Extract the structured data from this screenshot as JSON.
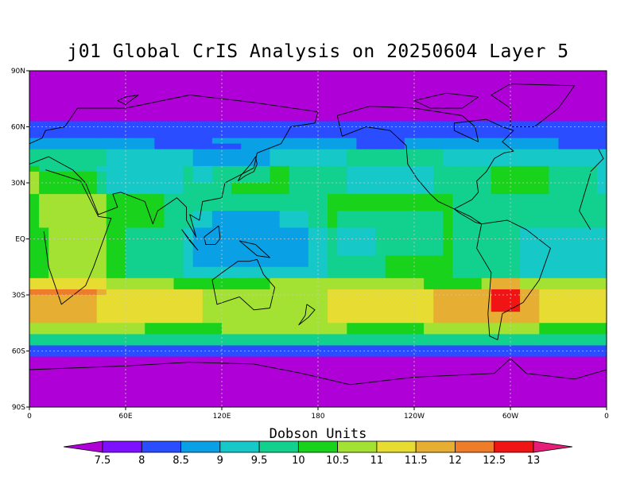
{
  "title": "j01 Global CrIS Analysis on 20250604 Layer 5",
  "colorbar": {
    "title": "Dobson Units",
    "ticks": [
      "7.5",
      "8",
      "8.5",
      "9",
      "9.5",
      "10",
      "10.5",
      "11",
      "11.5",
      "12",
      "12.5",
      "13"
    ],
    "colors": [
      "#b000d8",
      "#7d10ff",
      "#2a4dff",
      "#0aa0e6",
      "#16c8c8",
      "#12d08e",
      "#18d21c",
      "#a3e232",
      "#e6dc32",
      "#e6ae32",
      "#ee7c28",
      "#f01414",
      "#e61e78"
    ]
  },
  "axes": {
    "lat_labels": [
      "90N",
      "60N",
      "30N",
      "EQ",
      "30S",
      "60S",
      "90S"
    ],
    "lon_labels": [
      "0",
      "60E",
      "120E",
      "180",
      "120W",
      "60W",
      "0"
    ]
  },
  "chart_data": {
    "type": "heatmap",
    "title": "j01 Global CrIS Analysis on 20250604 Layer 5",
    "units": "Dobson Units",
    "projection": "cylindrical equidistant",
    "xlim": [
      0,
      360
    ],
    "ylim": [
      -90,
      90
    ],
    "grid": true,
    "color_levels": [
      7.5,
      8,
      8.5,
      9,
      9.5,
      10,
      10.5,
      11,
      11.5,
      12,
      12.5,
      13
    ],
    "zonal_bands": [
      {
        "lat_range": [
          60,
          90
        ],
        "value_range": [
          7,
          7.5
        ]
      },
      {
        "lat_range": [
          47,
          60
        ],
        "value_range": [
          8,
          9
        ]
      },
      {
        "lat_range": [
          30,
          47
        ],
        "value_range": [
          9,
          10
        ]
      },
      {
        "lat_range": [
          0,
          30
        ],
        "value_range": [
          9,
          10.5
        ]
      },
      {
        "lat_range": [
          -25,
          0
        ],
        "value_range": [
          9,
          10.5
        ]
      },
      {
        "lat_range": [
          -50,
          -25
        ],
        "value_range": [
          10.5,
          12
        ]
      },
      {
        "lat_range": [
          -60,
          -50
        ],
        "value_range": [
          8,
          10
        ]
      },
      {
        "lat_range": [
          -90,
          -60
        ],
        "value_range": [
          7,
          7.5
        ]
      }
    ],
    "maximum": {
      "lon": 295,
      "lat": -30,
      "value": 12.5
    }
  }
}
